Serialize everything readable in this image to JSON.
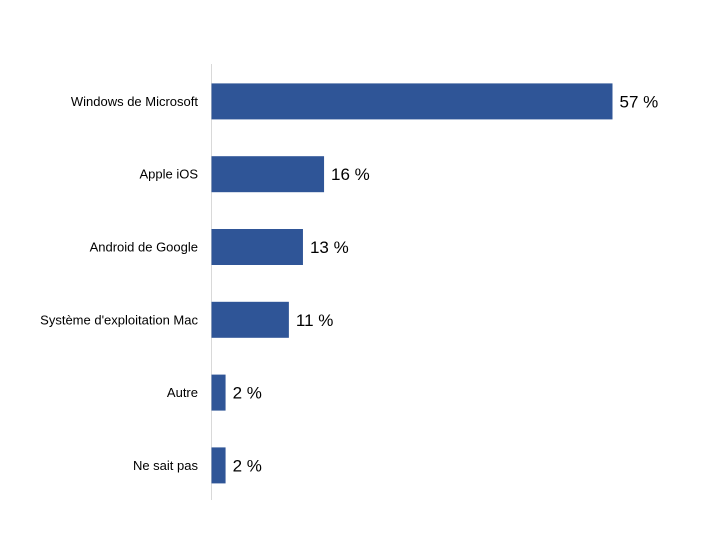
{
  "chart_data": {
    "type": "bar",
    "orientation": "horizontal",
    "categories": [
      "Windows de Microsoft",
      "Apple iOS",
      "Android de Google",
      "Système d'exploitation Mac",
      "Autre",
      "Ne sait pas"
    ],
    "values": [
      57,
      16,
      13,
      11,
      2,
      2
    ],
    "value_labels": [
      "57 %",
      "16 %",
      "13 %",
      "11 %",
      "2 %",
      "2 %"
    ],
    "title": "",
    "xlabel": "",
    "ylabel": "",
    "xlim": [
      0,
      57
    ],
    "grid": false,
    "legend": "none",
    "bar_color": "#2F5597"
  }
}
